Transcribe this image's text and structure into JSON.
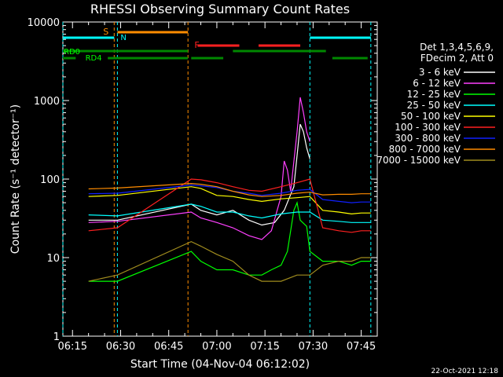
{
  "chart_data": {
    "type": "line",
    "title": "RHESSI Observing Summary Count Rates",
    "xlabel": "Start Time (04-Nov-04 06:12:02)",
    "ylabel": "Count Rate (s⁻¹ detector⁻¹)",
    "yscale": "log",
    "ylim": [
      1,
      10000
    ],
    "xlim": [
      "06:12",
      "07:50"
    ],
    "x_ticks": [
      "06:15",
      "06:30",
      "06:45",
      "07:00",
      "07:15",
      "07:30",
      "07:45"
    ],
    "y_ticks": [
      "1",
      "10",
      "100",
      "1000",
      "10000"
    ],
    "legend_header": [
      "Det 1,3,4,5,6,9,",
      "FDecim 2, Att 0"
    ],
    "legend_position": "right",
    "footer": "22-Oct-2021 12:18",
    "series": [
      {
        "name": "3 - 6 keV",
        "color": "#ffffff",
        "points": [
          [
            "06:20",
            30
          ],
          [
            "06:29",
            30
          ],
          [
            "06:52",
            48
          ],
          [
            "06:55",
            40
          ],
          [
            "07:00",
            35
          ],
          [
            "07:05",
            40
          ],
          [
            "07:10",
            30
          ],
          [
            "07:14",
            26
          ],
          [
            "07:18",
            28
          ],
          [
            "07:21",
            40
          ],
          [
            "07:24",
            80
          ],
          [
            "07:25",
            200
          ],
          [
            "07:26",
            500
          ],
          [
            "07:27",
            400
          ],
          [
            "07:28",
            250
          ],
          [
            "07:29",
            180
          ]
        ]
      },
      {
        "name": "6 - 12 keV",
        "color": "#ff40ff",
        "points": [
          [
            "06:20",
            28
          ],
          [
            "06:29",
            29
          ],
          [
            "06:52",
            38
          ],
          [
            "06:55",
            32
          ],
          [
            "07:00",
            28
          ],
          [
            "07:05",
            24
          ],
          [
            "07:10",
            19
          ],
          [
            "07:14",
            17
          ],
          [
            "07:17",
            22
          ],
          [
            "07:20",
            60
          ],
          [
            "07:21",
            170
          ],
          [
            "07:22",
            130
          ],
          [
            "07:23",
            70
          ],
          [
            "07:25",
            400
          ],
          [
            "07:26",
            1100
          ],
          [
            "07:27",
            700
          ],
          [
            "07:28",
            400
          ],
          [
            "07:29",
            300
          ]
        ]
      },
      {
        "name": "12 - 25 keV",
        "color": "#00ff00",
        "points": [
          [
            "06:20",
            5
          ],
          [
            "06:29",
            5
          ],
          [
            "06:52",
            12
          ],
          [
            "06:55",
            9
          ],
          [
            "07:00",
            7
          ],
          [
            "07:05",
            7
          ],
          [
            "07:10",
            6
          ],
          [
            "07:14",
            6
          ],
          [
            "07:17",
            7
          ],
          [
            "07:20",
            8
          ],
          [
            "07:22",
            12
          ],
          [
            "07:24",
            40
          ],
          [
            "07:25",
            50
          ],
          [
            "07:26",
            30
          ],
          [
            "07:28",
            25
          ],
          [
            "07:29",
            12
          ],
          [
            "07:33",
            9
          ],
          [
            "07:38",
            9
          ],
          [
            "07:42",
            8
          ],
          [
            "07:45",
            9
          ],
          [
            "07:48",
            9
          ]
        ]
      },
      {
        "name": "25 - 50 keV",
        "color": "#00ffff",
        "points": [
          [
            "06:20",
            35
          ],
          [
            "06:29",
            34
          ],
          [
            "06:52",
            48
          ],
          [
            "06:55",
            45
          ],
          [
            "07:00",
            38
          ],
          [
            "07:05",
            38
          ],
          [
            "07:10",
            34
          ],
          [
            "07:14",
            32
          ],
          [
            "07:20",
            36
          ],
          [
            "07:25",
            38
          ],
          [
            "07:29",
            38
          ],
          [
            "07:33",
            30
          ],
          [
            "07:38",
            29
          ],
          [
            "07:42",
            28
          ],
          [
            "07:45",
            28
          ],
          [
            "07:48",
            28
          ]
        ]
      },
      {
        "name": "50 - 100 keV",
        "color": "#ffff00",
        "points": [
          [
            "06:20",
            60
          ],
          [
            "06:29",
            62
          ],
          [
            "06:52",
            80
          ],
          [
            "06:55",
            76
          ],
          [
            "07:00",
            62
          ],
          [
            "07:05",
            60
          ],
          [
            "07:10",
            55
          ],
          [
            "07:14",
            52
          ],
          [
            "07:20",
            56
          ],
          [
            "07:25",
            58
          ],
          [
            "07:29",
            60
          ],
          [
            "07:33",
            40
          ],
          [
            "07:38",
            38
          ],
          [
            "07:42",
            36
          ],
          [
            "07:45",
            37
          ],
          [
            "07:48",
            37
          ]
        ]
      },
      {
        "name": "100 - 300 keV",
        "color": "#ff2020",
        "points": [
          [
            "06:20",
            22
          ],
          [
            "06:29",
            24
          ],
          [
            "06:52",
            100
          ],
          [
            "06:55",
            98
          ],
          [
            "07:00",
            90
          ],
          [
            "07:05",
            80
          ],
          [
            "07:10",
            72
          ],
          [
            "07:14",
            70
          ],
          [
            "07:20",
            80
          ],
          [
            "07:25",
            90
          ],
          [
            "07:29",
            100
          ],
          [
            "07:33",
            24
          ],
          [
            "07:38",
            22
          ],
          [
            "07:42",
            21
          ],
          [
            "07:45",
            22
          ],
          [
            "07:48",
            22
          ]
        ]
      },
      {
        "name": "300 - 800 keV",
        "color": "#1020ff",
        "points": [
          [
            "06:20",
            65
          ],
          [
            "06:29",
            66
          ],
          [
            "06:52",
            84
          ],
          [
            "06:55",
            82
          ],
          [
            "07:00",
            78
          ],
          [
            "07:05",
            70
          ],
          [
            "07:10",
            66
          ],
          [
            "07:14",
            62
          ],
          [
            "07:20",
            66
          ],
          [
            "07:25",
            72
          ],
          [
            "07:29",
            74
          ],
          [
            "07:33",
            55
          ],
          [
            "07:38",
            52
          ],
          [
            "07:42",
            50
          ],
          [
            "07:45",
            51
          ],
          [
            "07:48",
            51
          ]
        ]
      },
      {
        "name": "800 - 7000 keV",
        "color": "#ff8c00",
        "points": [
          [
            "06:20",
            75
          ],
          [
            "06:29",
            77
          ],
          [
            "06:52",
            88
          ],
          [
            "06:55",
            86
          ],
          [
            "07:00",
            80
          ],
          [
            "07:05",
            70
          ],
          [
            "07:10",
            63
          ],
          [
            "07:14",
            60
          ],
          [
            "07:20",
            62
          ],
          [
            "07:25",
            66
          ],
          [
            "07:29",
            68
          ],
          [
            "07:33",
            63
          ],
          [
            "07:38",
            64
          ],
          [
            "07:42",
            64
          ],
          [
            "07:45",
            65
          ],
          [
            "07:48",
            65
          ]
        ]
      },
      {
        "name": "7000 - 15000 keV",
        "color": "#a08c1e",
        "points": [
          [
            "06:20",
            5
          ],
          [
            "06:29",
            6
          ],
          [
            "06:52",
            16
          ],
          [
            "06:55",
            14
          ],
          [
            "07:00",
            11
          ],
          [
            "07:05",
            9
          ],
          [
            "07:10",
            6
          ],
          [
            "07:14",
            5
          ],
          [
            "07:20",
            5
          ],
          [
            "07:25",
            6
          ],
          [
            "07:29",
            6
          ],
          [
            "07:33",
            8
          ],
          [
            "07:38",
            9
          ],
          [
            "07:42",
            9
          ],
          [
            "07:45",
            10
          ],
          [
            "07:48",
            10
          ]
        ]
      }
    ],
    "annotations": {
      "labels": {
        "S": "S",
        "N": "N",
        "F": "F",
        "RD0": "RD0",
        "RD4": "RD4"
      },
      "orange_bar": [
        [
          "06:29",
          "06:51"
        ]
      ],
      "cyan_bar": [
        [
          "06:12",
          "06:28"
        ],
        [
          "07:29",
          "07:48"
        ]
      ],
      "red_bar": [
        [
          "06:54",
          "07:07"
        ],
        [
          "07:13",
          "07:26"
        ]
      ],
      "green_bar_upper": [
        [
          "06:12",
          "06:51"
        ],
        [
          "07:05",
          "07:34"
        ]
      ],
      "green_bar_lower": [
        [
          "06:12",
          "06:16"
        ],
        [
          "06:26",
          "06:51"
        ],
        [
          "06:52",
          "07:02"
        ],
        [
          "07:36",
          "07:47"
        ]
      ],
      "vlines_cyan": [
        "06:12",
        "06:29",
        "07:29",
        "07:48"
      ],
      "vlines_orange": [
        "06:28",
        "06:51"
      ]
    }
  }
}
